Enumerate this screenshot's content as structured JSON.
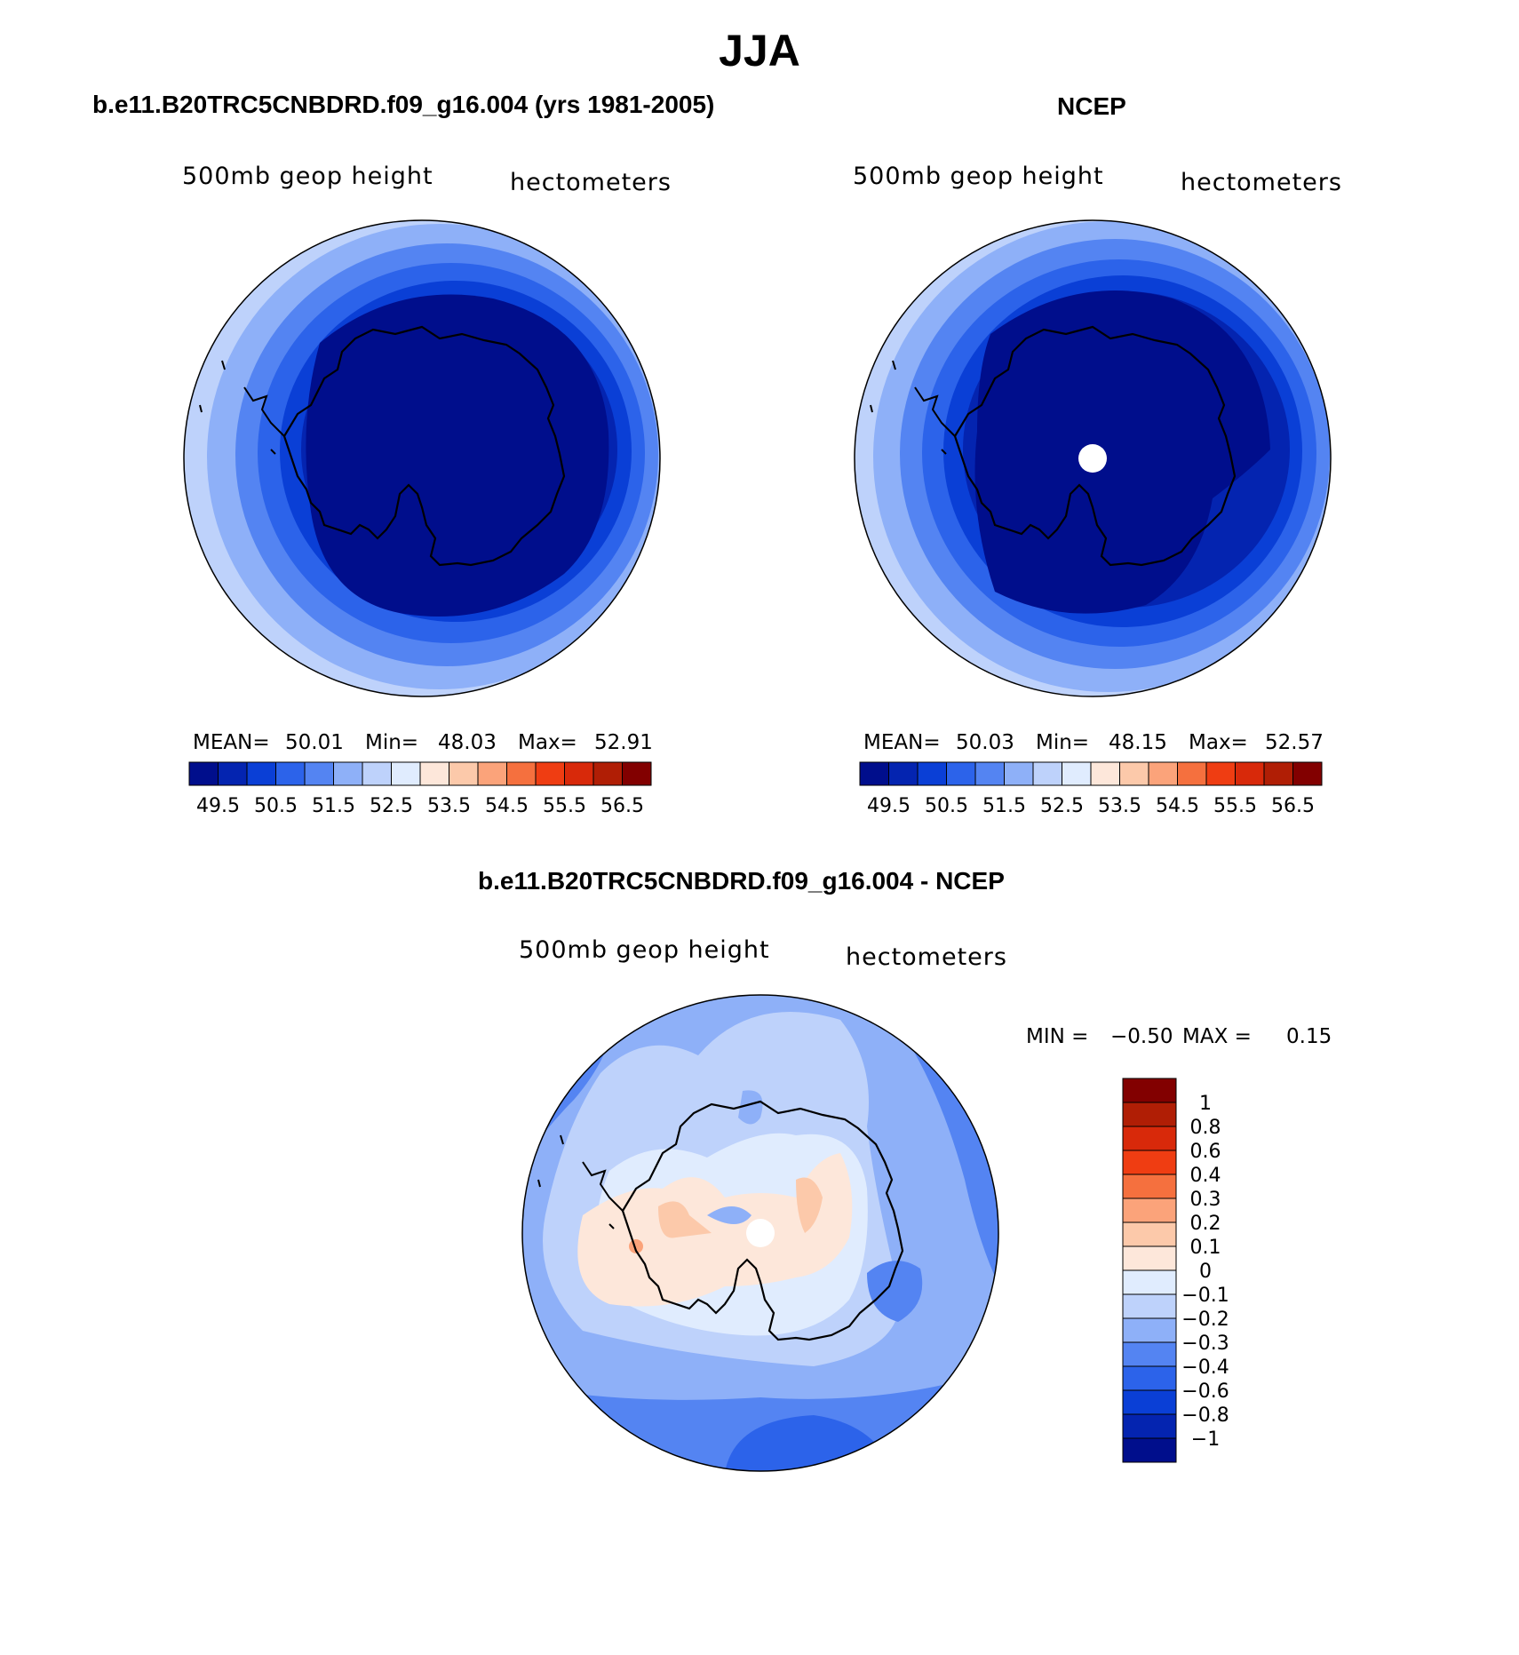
{
  "title": "JJA",
  "panels": [
    {
      "heading": "b.e11.B20TRC5CNBDRD.f09_g16.004 (yrs 1981-2005)",
      "variable": "500mb  geop  height",
      "units": "hectometers",
      "stats": {
        "mean_label": "MEAN=",
        "mean": "50.01",
        "min_label": "Min=",
        "min": "48.03",
        "max_label": "Max=",
        "max": "52.91"
      },
      "colorbar_labels": [
        "49.5",
        "50.5",
        "51.5",
        "52.5",
        "53.5",
        "54.5",
        "55.5",
        "56.5"
      ]
    },
    {
      "heading": "NCEP",
      "variable": "500mb  geop  height",
      "units": "hectometers",
      "stats": {
        "mean_label": "MEAN=",
        "mean": "50.03",
        "min_label": "Min=",
        "min": "48.15",
        "max_label": "Max=",
        "max": "52.57"
      },
      "colorbar_labels": [
        "49.5",
        "50.5",
        "51.5",
        "52.5",
        "53.5",
        "54.5",
        "55.5",
        "56.5"
      ]
    },
    {
      "heading": "b.e11.B20TRC5CNBDRD.f09_g16.004 - NCEP",
      "variable": "500mb  geop  height",
      "units": "hectometers",
      "stats": {
        "min_label": "MIN =",
        "min": "−0.50",
        "max_label": "MAX =",
        "max": "0.15"
      },
      "colorbar_labels": [
        "1",
        "0.8",
        "0.6",
        "0.4",
        "0.3",
        "0.2",
        "0.1",
        "0",
        "−0.1",
        "−0.2",
        "−0.3",
        "−0.4",
        "−0.6",
        "−0.8",
        "−1"
      ]
    }
  ],
  "colors": {
    "level_palette": [
      "#000e8c",
      "#0424b0",
      "#0a3fd6",
      "#2c63ea",
      "#5484f2",
      "#8eb0f8",
      "#bed2fb",
      "#e0ecfe",
      "#fde7da",
      "#fcc9aa",
      "#fba37a",
      "#f5703e",
      "#ef3d12",
      "#d8290a",
      "#b01e05",
      "#820000"
    ],
    "diff_palette": [
      "#820000",
      "#b01e05",
      "#d8290a",
      "#ef3d12",
      "#f5703e",
      "#fba37a",
      "#fcc9aa",
      "#fde7da",
      "#e0ecfe",
      "#bed2fb",
      "#8eb0f8",
      "#5484f2",
      "#2c63ea",
      "#0a3fd6",
      "#0424b0",
      "#000e8c"
    ],
    "missing": "#ffffff",
    "coastline": "#000000"
  }
}
